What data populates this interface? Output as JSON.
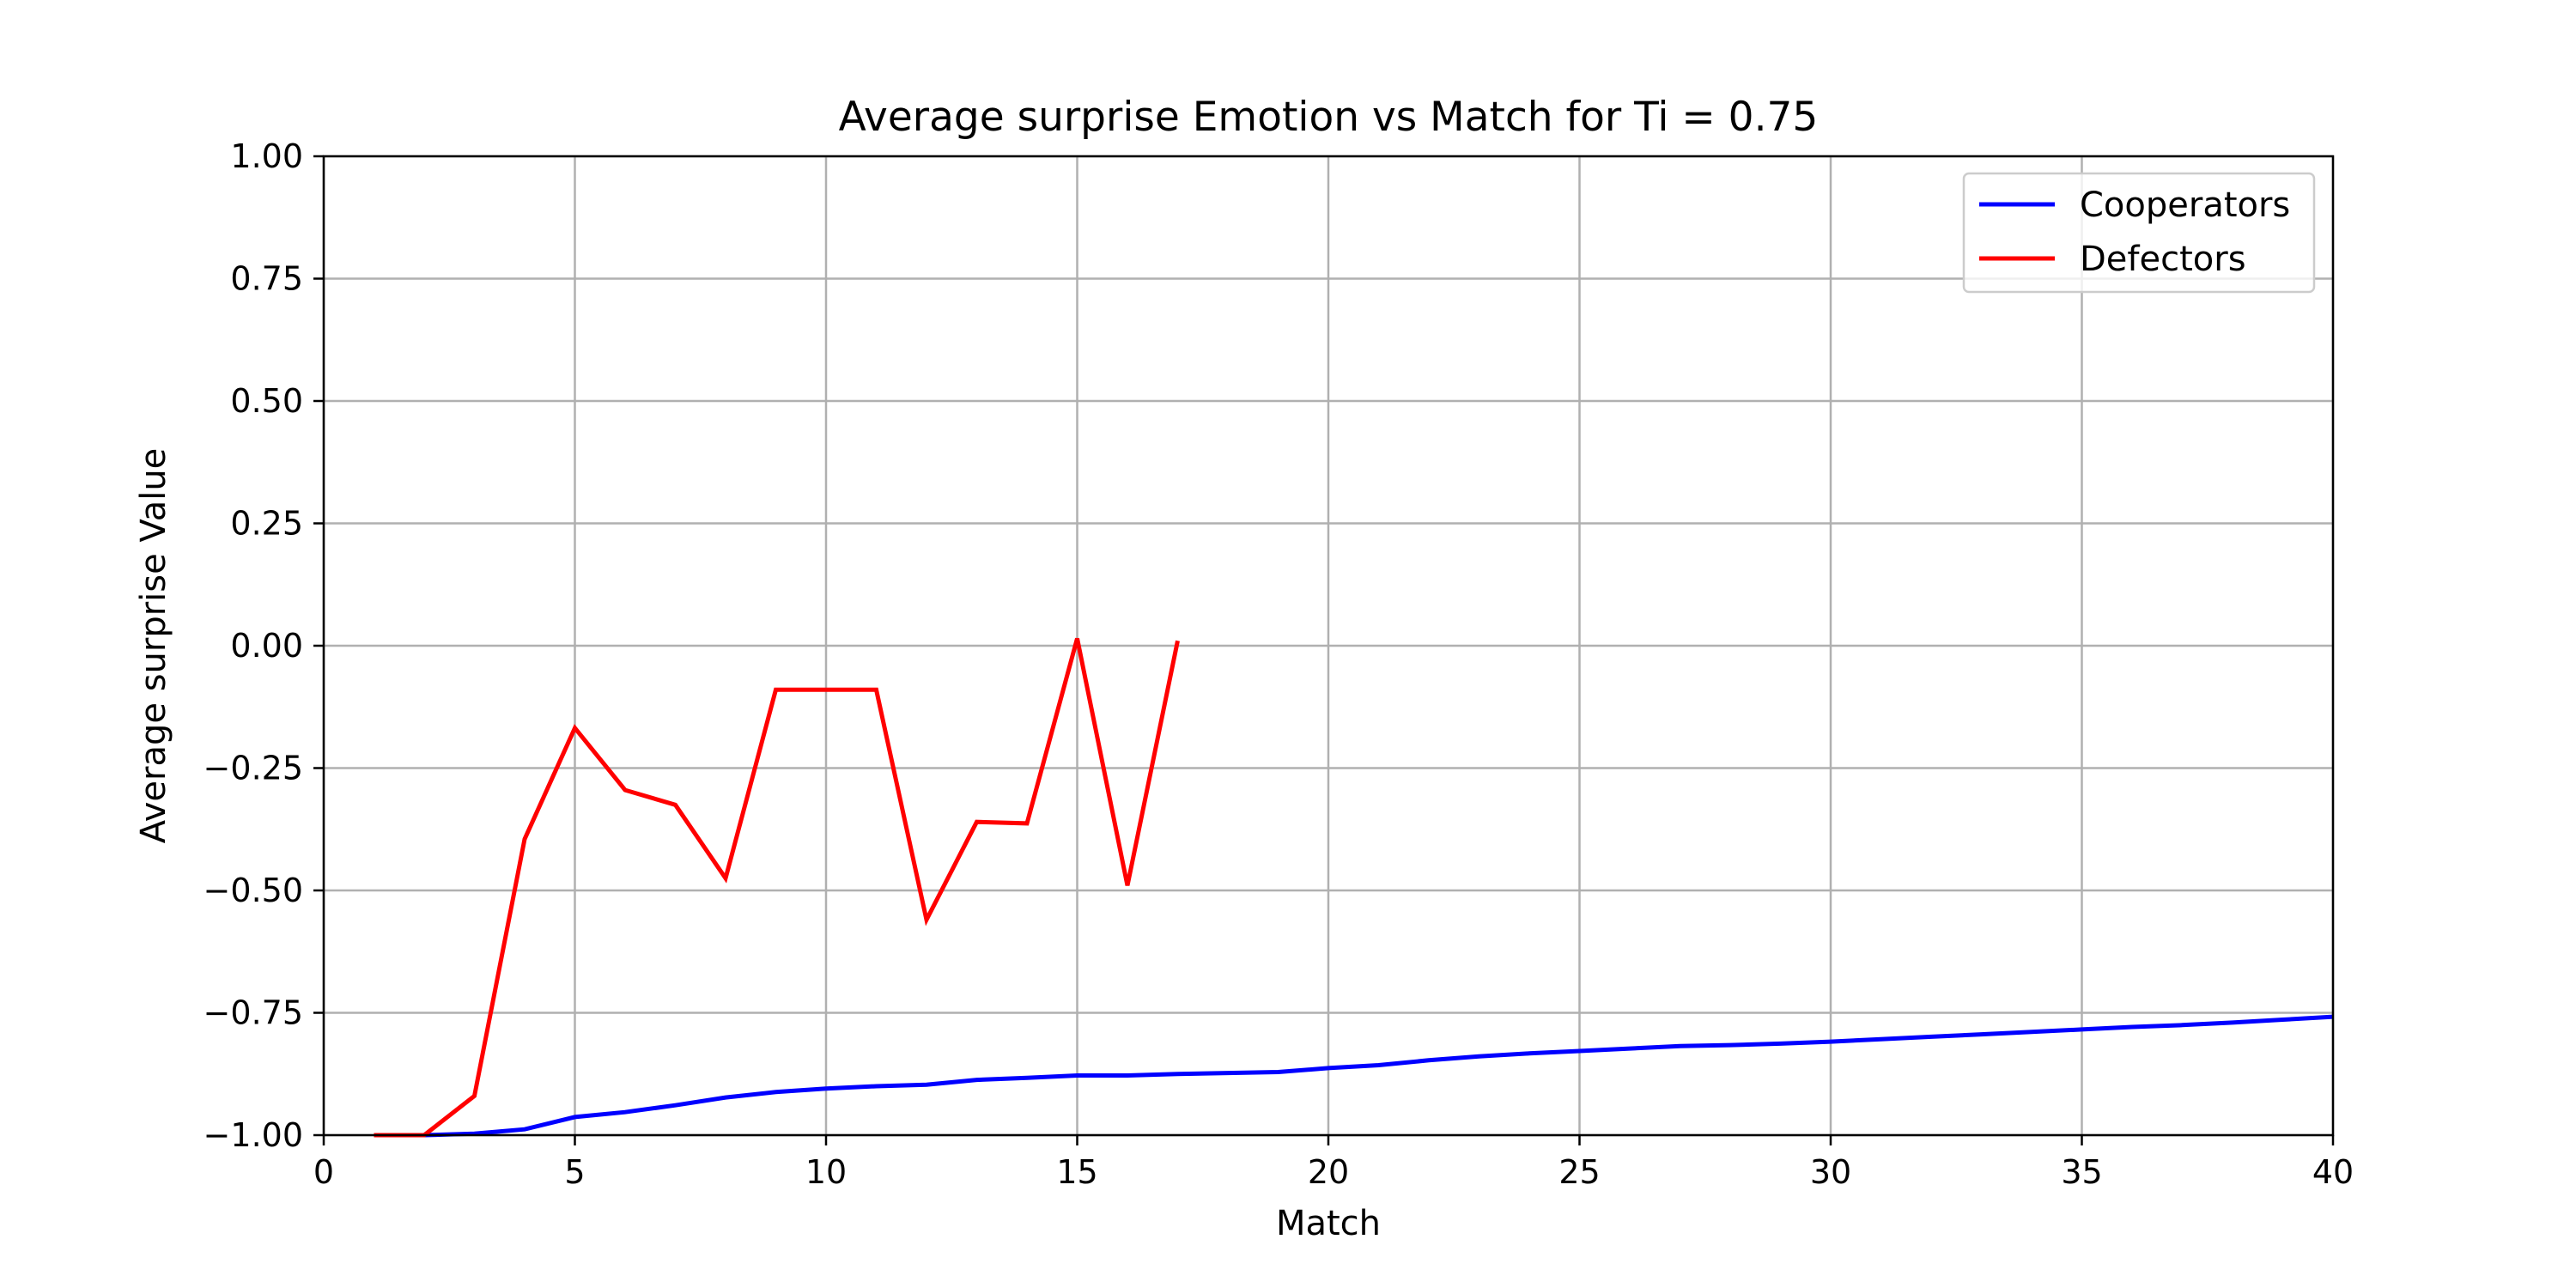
{
  "chart_data": {
    "type": "line",
    "title": "Average surprise Emotion vs Match for Ti = 0.75",
    "xlabel": "Match",
    "ylabel": "Average surprise Value",
    "xlim": [
      0,
      40
    ],
    "ylim": [
      -1.0,
      1.0
    ],
    "xticks": [
      0,
      5,
      10,
      15,
      20,
      25,
      30,
      35,
      40
    ],
    "xtick_labels": [
      "0",
      "5",
      "10",
      "15",
      "20",
      "25",
      "30",
      "35",
      "40"
    ],
    "yticks": [
      -1.0,
      -0.75,
      -0.5,
      -0.25,
      0.0,
      0.25,
      0.5,
      0.75,
      1.0
    ],
    "ytick_labels": [
      "−1.00",
      "−0.75",
      "−0.50",
      "−0.25",
      "0.00",
      "0.25",
      "0.50",
      "0.75",
      "1.00"
    ],
    "grid": true,
    "legend_position": "top-right",
    "series": [
      {
        "name": "Cooperators",
        "color": "#0000ff",
        "x": [
          1,
          2,
          3,
          4,
          5,
          6,
          7,
          8,
          9,
          10,
          11,
          12,
          13,
          14,
          15,
          16,
          17,
          18,
          19,
          20,
          21,
          22,
          23,
          24,
          25,
          26,
          27,
          28,
          29,
          30,
          31,
          32,
          33,
          34,
          35,
          36,
          37,
          38,
          39,
          40
        ],
        "y": [
          -1.0,
          -1.0,
          -0.997,
          -0.988,
          -0.963,
          -0.953,
          -0.939,
          -0.923,
          -0.912,
          -0.905,
          -0.9,
          -0.897,
          -0.887,
          -0.883,
          -0.878,
          -0.878,
          -0.875,
          -0.873,
          -0.871,
          -0.863,
          -0.857,
          -0.847,
          -0.839,
          -0.833,
          -0.828,
          -0.823,
          -0.818,
          -0.816,
          -0.813,
          -0.809,
          -0.804,
          -0.799,
          -0.794,
          -0.789,
          -0.784,
          -0.779,
          -0.775,
          -0.77,
          -0.764,
          -0.758
        ]
      },
      {
        "name": "Defectors",
        "color": "#ff0000",
        "x": [
          1,
          2,
          3,
          4,
          5,
          6,
          7,
          8,
          9,
          10,
          11,
          12,
          13,
          14,
          15,
          16,
          17
        ],
        "y": [
          -1.0,
          -1.0,
          -0.92,
          -0.395,
          -0.168,
          -0.295,
          -0.325,
          -0.475,
          -0.09,
          -0.09,
          -0.09,
          -0.56,
          -0.36,
          -0.363,
          0.015,
          -0.49,
          0.01
        ]
      }
    ]
  }
}
